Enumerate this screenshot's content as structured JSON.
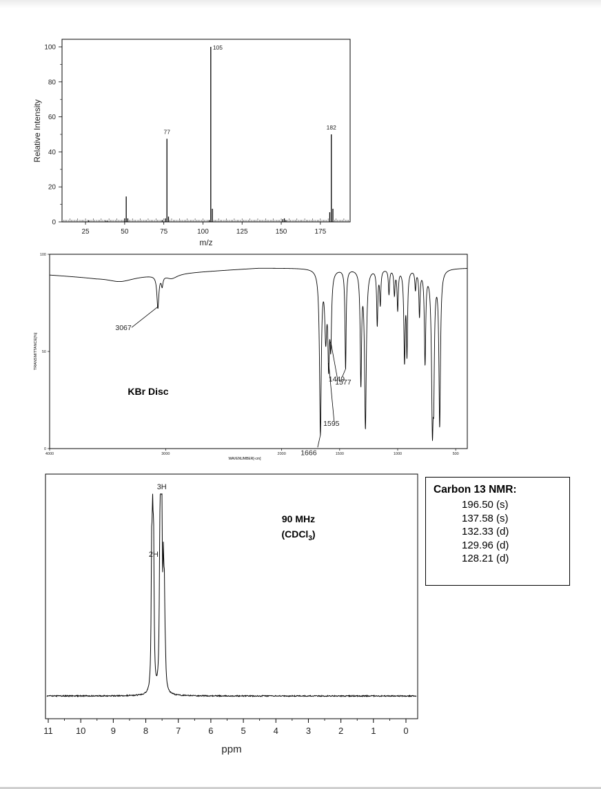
{
  "ms": {
    "ylabel": "Relative Intensity",
    "xlabel": "m/z",
    "xticks": [
      "25",
      "50",
      "75",
      "100",
      "125",
      "150",
      "175"
    ],
    "yticks": [
      "0",
      "20",
      "40",
      "60",
      "80",
      "100"
    ]
  },
  "ir": {
    "ylabel": "TRANSMITTANCE[%]",
    "xlabel": "WAVENUMBER[-cm]",
    "xticks": [
      "4000",
      "3000",
      "2000",
      "1500",
      "1000",
      "500"
    ],
    "yticks": [
      "0",
      "50",
      "100"
    ],
    "sample_label": "KBr Disc"
  },
  "nmr": {
    "freq_label": "90 MHz",
    "solvent_label": "(CDCl",
    "solvent_sub": "3",
    "solvent_close": ")",
    "xlabel": "ppm",
    "xticks": [
      "11",
      "10",
      "9",
      "8",
      "7",
      "6",
      "5",
      "4",
      "3",
      "2",
      "1",
      "0"
    ]
  },
  "c13": {
    "title": "Carbon 13 NMR:",
    "peaks": [
      "196.50 (s)",
      "137.58 (s)",
      "132.33 (d)",
      "129.96 (d)",
      "128.21 (d)"
    ]
  },
  "chart_data": [
    {
      "type": "bar",
      "ylabel": "Relative Intensity",
      "xlabel": "m/z",
      "xlim": [
        10,
        194
      ],
      "ylim": [
        0,
        102
      ],
      "grid": false,
      "x": [
        27,
        38,
        39,
        50,
        51,
        52,
        74,
        76,
        77,
        78,
        104,
        105,
        106,
        151,
        152,
        153,
        181,
        182,
        183
      ],
      "values": [
        0.8,
        0.6,
        0.5,
        2,
        14.5,
        2,
        1,
        2,
        47.5,
        3,
        1,
        100,
        7.5,
        1.5,
        2,
        1,
        5.5,
        50,
        7.5
      ],
      "annotations": [
        {
          "x": 77,
          "text": "77"
        },
        {
          "x": 105,
          "text": "105"
        },
        {
          "x": 182,
          "text": "182"
        }
      ]
    },
    {
      "type": "line",
      "ylabel": "TRANSMITTANCE[%]",
      "xlabel": "WAVENUMBER[-cm]",
      "xlim": [
        4000,
        400
      ],
      "ylim": [
        0,
        100
      ],
      "baseline": 93,
      "peaks": [
        {
          "x": 3400,
          "y": 86,
          "w": 140
        },
        {
          "x": 3067,
          "y": 73,
          "w": 10
        },
        {
          "x": 3030,
          "y": 85,
          "w": 8
        },
        {
          "x": 2950,
          "y": 88,
          "w": 60
        },
        {
          "x": 1666,
          "y": 7,
          "w": 9
        },
        {
          "x": 1620,
          "y": 58,
          "w": 10
        },
        {
          "x": 1595,
          "y": 44,
          "w": 8
        },
        {
          "x": 1577,
          "y": 55,
          "w": 8
        },
        {
          "x": 1449,
          "y": 41,
          "w": 6
        },
        {
          "x": 1317,
          "y": 33,
          "w": 7
        },
        {
          "x": 1278,
          "y": 10,
          "w": 9
        },
        {
          "x": 1176,
          "y": 64,
          "w": 6
        },
        {
          "x": 1150,
          "y": 75,
          "w": 6
        },
        {
          "x": 1075,
          "y": 80,
          "w": 6
        },
        {
          "x": 1028,
          "y": 80,
          "w": 6
        },
        {
          "x": 1000,
          "y": 72,
          "w": 6
        },
        {
          "x": 941,
          "y": 45,
          "w": 7
        },
        {
          "x": 920,
          "y": 49,
          "w": 6
        },
        {
          "x": 847,
          "y": 83,
          "w": 6
        },
        {
          "x": 812,
          "y": 69,
          "w": 6
        },
        {
          "x": 764,
          "y": 44,
          "w": 7
        },
        {
          "x": 700,
          "y": 5,
          "w": 9
        },
        {
          "x": 690,
          "y": 28,
          "w": 6
        },
        {
          "x": 638,
          "y": 11,
          "w": 8
        }
      ],
      "annotations": [
        {
          "x": 3067,
          "text": "3067"
        },
        {
          "x": 1449,
          "text": "1449"
        },
        {
          "x": 1577,
          "text": "1577"
        },
        {
          "x": 1595,
          "text": "1595"
        },
        {
          "x": 1666,
          "text": "1666"
        }
      ]
    },
    {
      "type": "line",
      "xlabel": "ppm",
      "xlim": [
        11,
        0
      ],
      "reversed_x": true,
      "peaks": [
        {
          "x": 7.82,
          "y": 60,
          "w": 0.018
        },
        {
          "x": 7.79,
          "y": 70,
          "w": 0.018
        },
        {
          "x": 7.76,
          "y": 64,
          "w": 0.018
        },
        {
          "x": 7.57,
          "y": 50,
          "w": 0.018
        },
        {
          "x": 7.54,
          "y": 100,
          "w": 0.018
        },
        {
          "x": 7.51,
          "y": 88,
          "w": 0.018
        },
        {
          "x": 7.46,
          "y": 48,
          "w": 0.018
        },
        {
          "x": 7.43,
          "y": 40,
          "w": 0.018
        },
        {
          "x": 7.4,
          "y": 10,
          "w": 0.02
        }
      ],
      "annotations": [
        {
          "x": 7.78,
          "text": "2H"
        },
        {
          "x": 7.53,
          "text": "3H"
        }
      ]
    }
  ]
}
